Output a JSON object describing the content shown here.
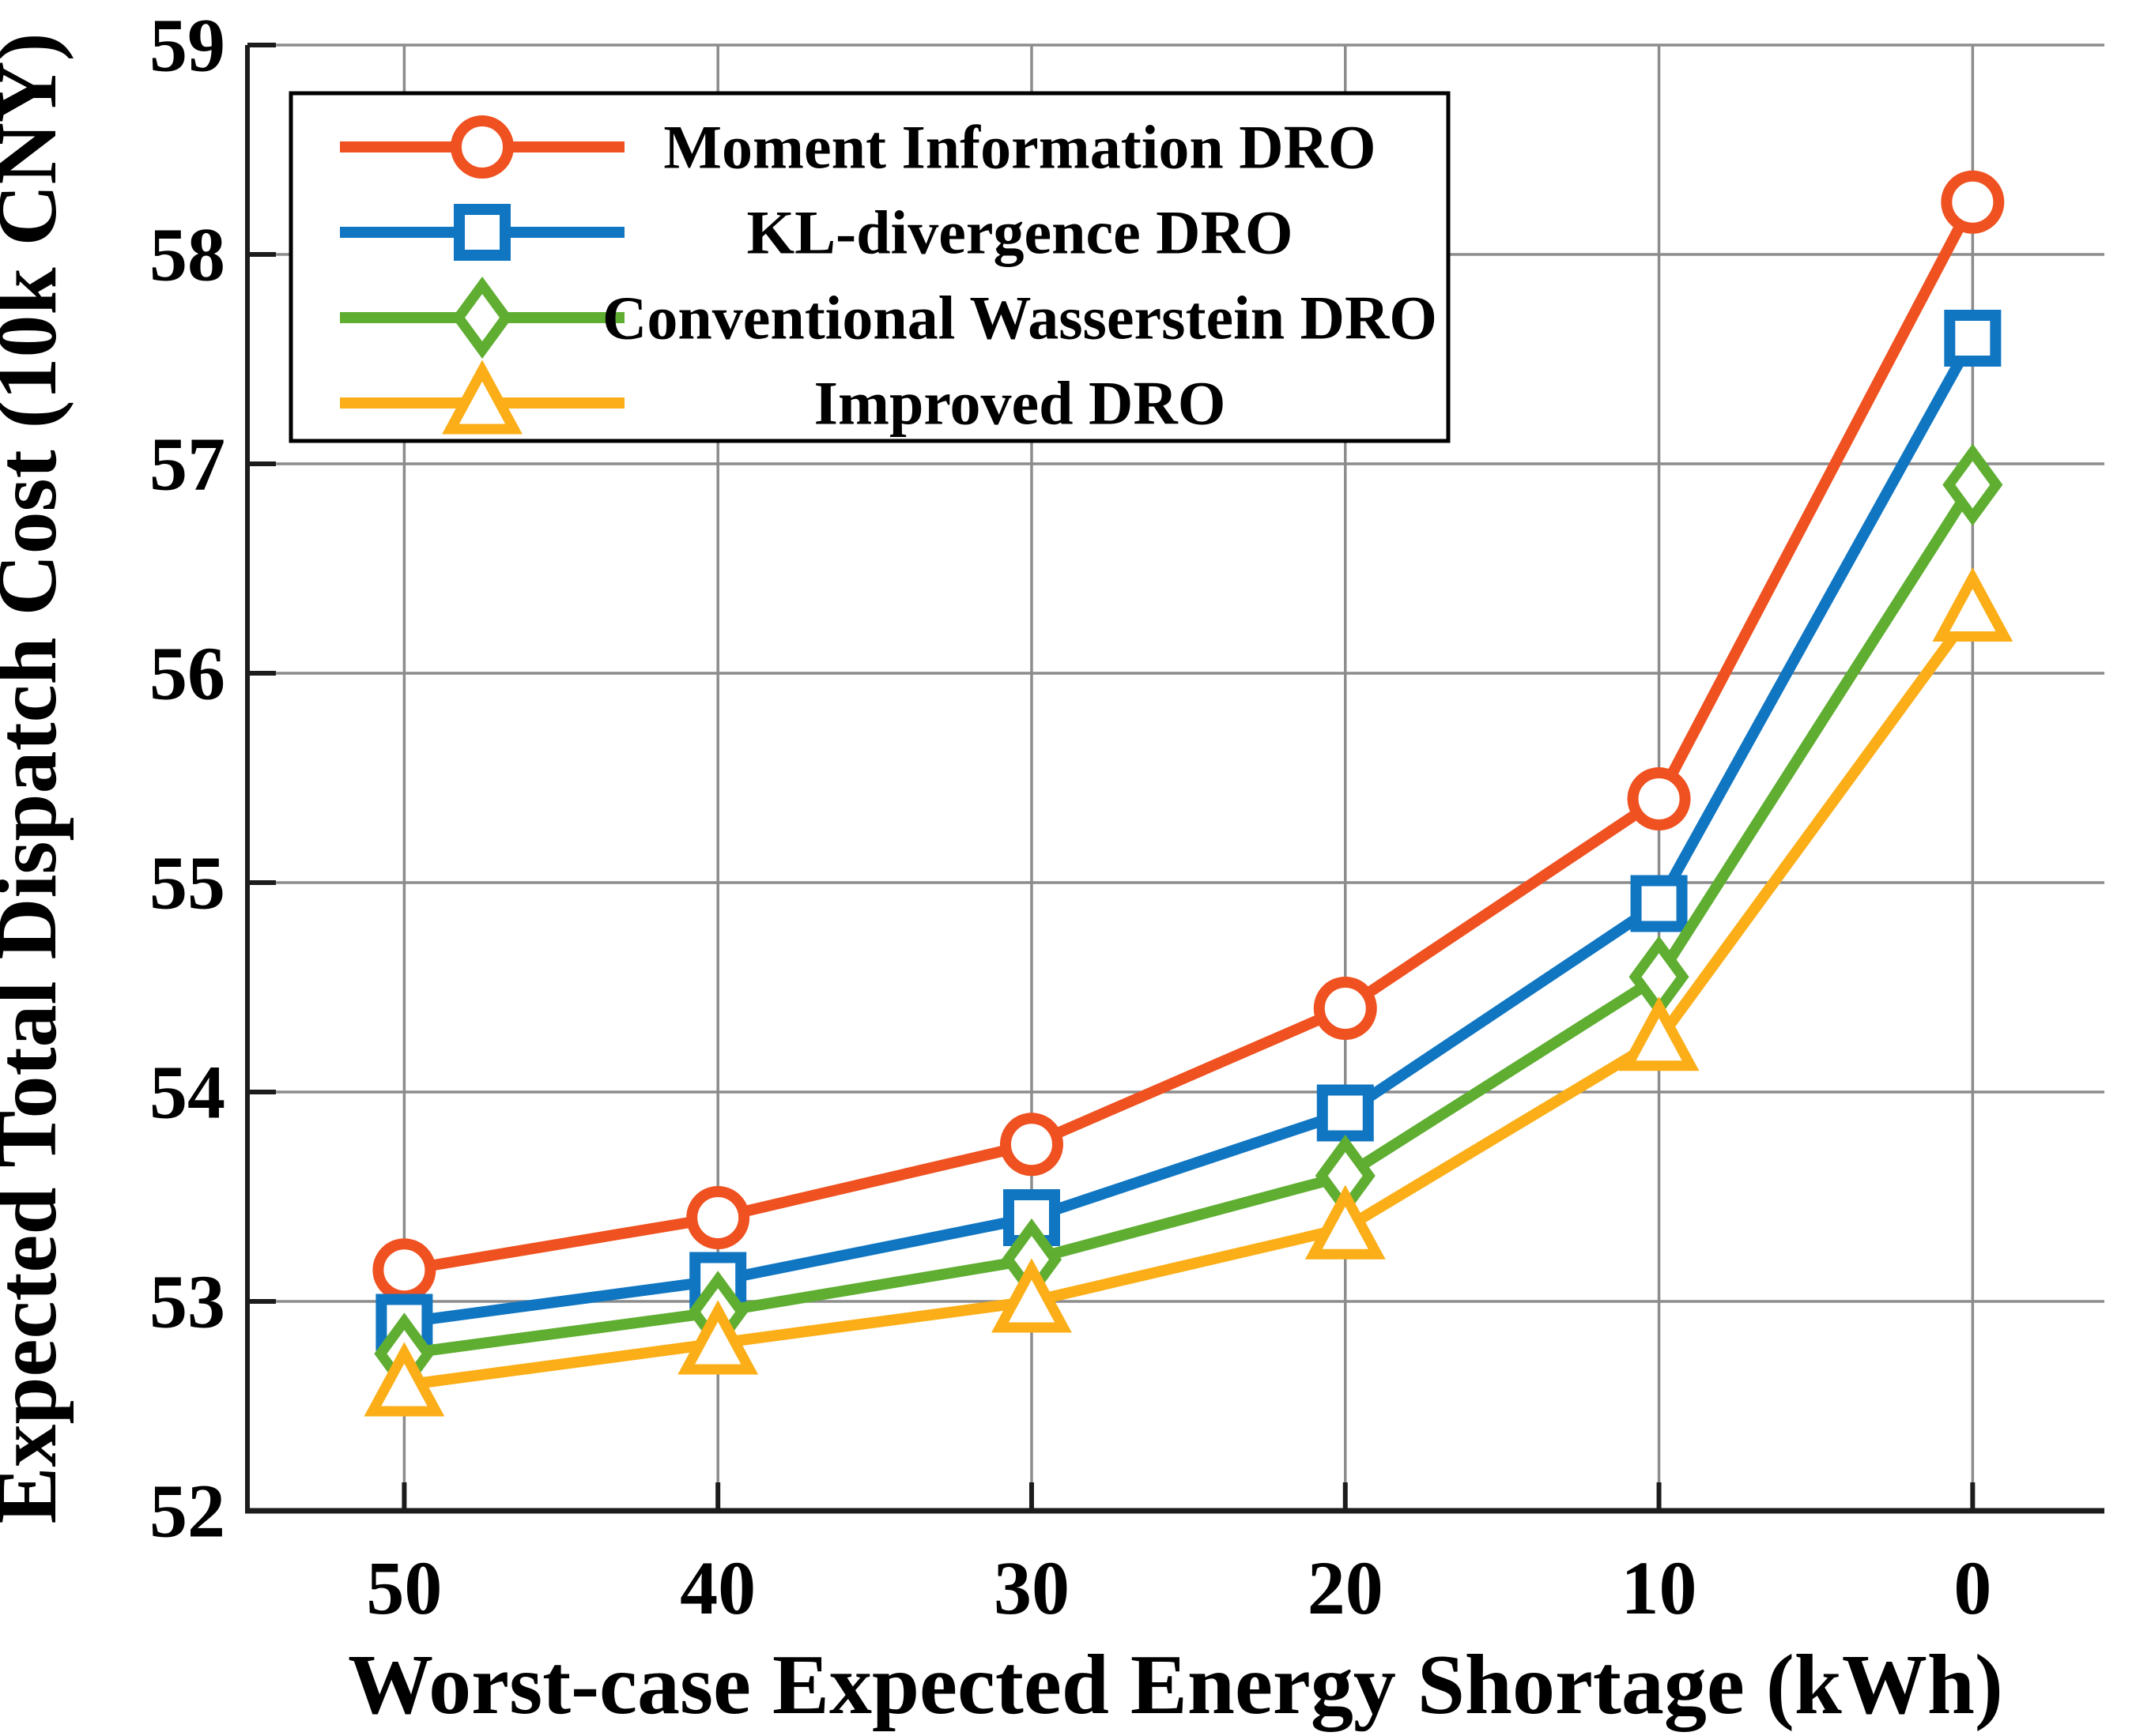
{
  "figure": {
    "background": "#ffffff"
  },
  "chart_data": {
    "type": "line",
    "title": "",
    "xlabel": "Worst-case Expected Energy Shortage (kWh)",
    "ylabel": "Expected Total Dispatch Cost (10k CNY)",
    "x": [
      50,
      40,
      30,
      20,
      10,
      0
    ],
    "x_axis_reversed": true,
    "xlim": [
      55,
      -4.2
    ],
    "ylim": [
      52,
      59
    ],
    "xtick_values": [
      50,
      40,
      30,
      20,
      10,
      0
    ],
    "xtick_labels": [
      "50",
      "40",
      "30",
      "20",
      "10",
      "0"
    ],
    "ytick_values": [
      52,
      53,
      54,
      55,
      56,
      57,
      58,
      59
    ],
    "ytick_labels": [
      "52",
      "53",
      "54",
      "55",
      "56",
      "57",
      "58",
      "59"
    ],
    "grid": true,
    "legend_position": "top-left",
    "series": [
      {
        "name": "Moment Information DRO",
        "marker": "circle",
        "color": "#EF5120",
        "values": [
          53.15,
          53.4,
          53.75,
          54.4,
          55.4,
          58.25
        ]
      },
      {
        "name": "KL-divergence DRO",
        "marker": "square",
        "color": "#1076C2",
        "values": [
          52.9,
          53.1,
          53.4,
          53.9,
          54.9,
          57.6
        ]
      },
      {
        "name": "Conventional Wasserstein DRO",
        "marker": "diamond",
        "color": "#5FAE32",
        "values": [
          52.75,
          52.95,
          53.2,
          53.6,
          54.55,
          56.9
        ]
      },
      {
        "name": "Improved DRO",
        "marker": "triangle",
        "color": "#FBAE17",
        "values": [
          52.6,
          52.8,
          53.0,
          53.35,
          54.25,
          56.3
        ]
      }
    ],
    "colors": {
      "grid": "#8c8c8c",
      "axis": "#1c1c1c",
      "marker_face": "#ffffff",
      "legend_border": "#000000",
      "legend_background": "#ffffff"
    }
  }
}
